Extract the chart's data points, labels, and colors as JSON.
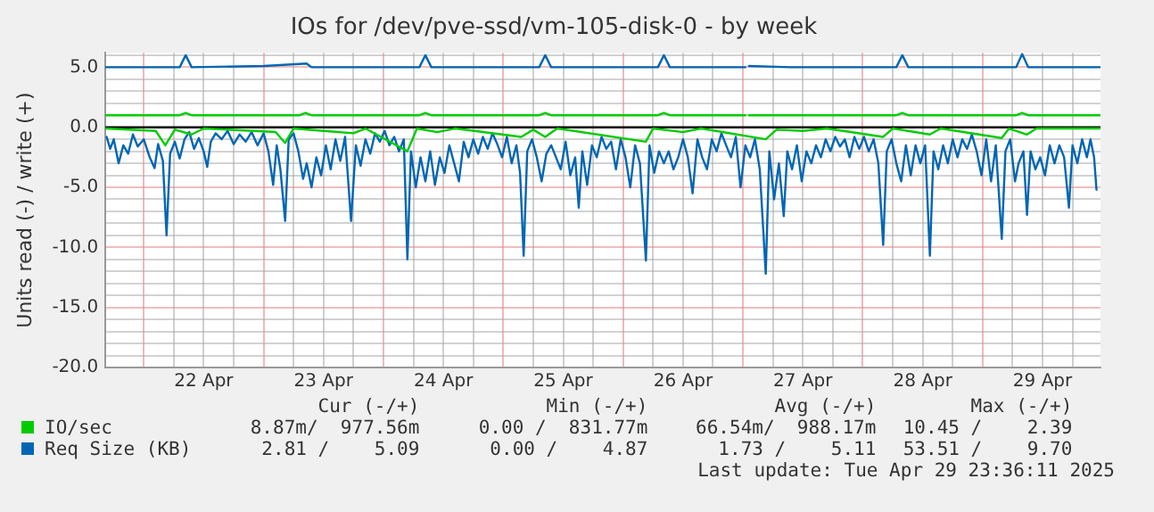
{
  "chart_data": {
    "type": "line",
    "title": "IOs for /dev/pve-ssd/vm-105-disk-0 - by week",
    "ylabel": "Units read (-) / write (+)",
    "xlim": [
      "2025-04-21T16:19",
      "2025-04-29T23:36"
    ],
    "xticks": [
      {
        "value": "2025-04-22T00:00",
        "label": null
      },
      {
        "value": "2025-04-22T06:00",
        "label": null
      },
      {
        "value": "2025-04-22T12:00",
        "label": "22 Apr"
      },
      {
        "value": "2025-04-22T18:00",
        "label": null
      },
      {
        "value": "2025-04-23T00:00",
        "label": null
      },
      {
        "value": "2025-04-23T06:00",
        "label": null
      },
      {
        "value": "2025-04-23T12:00",
        "label": "23 Apr"
      },
      {
        "value": "2025-04-23T18:00",
        "label": null
      },
      {
        "value": "2025-04-24T00:00",
        "label": null
      },
      {
        "value": "2025-04-24T06:00",
        "label": null
      },
      {
        "value": "2025-04-24T12:00",
        "label": "24 Apr"
      },
      {
        "value": "2025-04-24T18:00",
        "label": null
      },
      {
        "value": "2025-04-25T00:00",
        "label": null
      },
      {
        "value": "2025-04-25T06:00",
        "label": null
      },
      {
        "value": "2025-04-25T12:00",
        "label": "25 Apr"
      },
      {
        "value": "2025-04-25T18:00",
        "label": null
      },
      {
        "value": "2025-04-26T00:00",
        "label": null
      },
      {
        "value": "2025-04-26T06:00",
        "label": null
      },
      {
        "value": "2025-04-26T12:00",
        "label": "26 Apr"
      },
      {
        "value": "2025-04-26T18:00",
        "label": null
      },
      {
        "value": "2025-04-27T00:00",
        "label": null
      },
      {
        "value": "2025-04-27T06:00",
        "label": null
      },
      {
        "value": "2025-04-27T12:00",
        "label": "27 Apr"
      },
      {
        "value": "2025-04-27T18:00",
        "label": null
      },
      {
        "value": "2025-04-28T00:00",
        "label": null
      },
      {
        "value": "2025-04-28T06:00",
        "label": null
      },
      {
        "value": "2025-04-28T12:00",
        "label": "28 Apr"
      },
      {
        "value": "2025-04-28T18:00",
        "label": null
      },
      {
        "value": "2025-04-29T00:00",
        "label": null
      },
      {
        "value": "2025-04-29T06:00",
        "label": null
      },
      {
        "value": "2025-04-29T12:00",
        "label": "29 Apr"
      },
      {
        "value": "2025-04-29T18:00",
        "label": null
      }
    ],
    "ylim": [
      -20,
      6.2
    ],
    "yticks": [
      {
        "value": -20,
        "label": "-20.0"
      },
      {
        "value": -19,
        "label": null
      },
      {
        "value": -18,
        "label": null
      },
      {
        "value": -17,
        "label": null
      },
      {
        "value": -16,
        "label": null
      },
      {
        "value": -15,
        "label": "-15.0"
      },
      {
        "value": -14,
        "label": null
      },
      {
        "value": -13,
        "label": null
      },
      {
        "value": -12,
        "label": null
      },
      {
        "value": -11,
        "label": null
      },
      {
        "value": -10,
        "label": "-10.0"
      },
      {
        "value": -9,
        "label": null
      },
      {
        "value": -8,
        "label": null
      },
      {
        "value": -7,
        "label": null
      },
      {
        "value": -6,
        "label": null
      },
      {
        "value": -5,
        "label": "-5.0"
      },
      {
        "value": -4,
        "label": null
      },
      {
        "value": -3,
        "label": null
      },
      {
        "value": -2,
        "label": null
      },
      {
        "value": -1,
        "label": null
      },
      {
        "value": 0,
        "label": "0.0"
      },
      {
        "value": 1,
        "label": null
      },
      {
        "value": 2,
        "label": null
      },
      {
        "value": 3,
        "label": null
      },
      {
        "value": 4,
        "label": null
      },
      {
        "value": 5,
        "label": "5.0"
      },
      {
        "value": 6,
        "label": null
      }
    ],
    "grid": true,
    "legend": "bottom",
    "marker": "none",
    "line_style": "solid",
    "ref_lines": [
      {
        "axis": "y",
        "value": 0,
        "color": "#000000"
      }
    ],
    "series": [
      {
        "name": "IO/sec",
        "color": "#00cc00",
        "x": [
          "2025-04-21T16:19",
          "2025-04-22T07:12",
          "2025-04-22T08:24",
          "2025-04-22T09:36",
          "2025-04-23T07:12",
          "2025-04-23T08:24",
          "2025-04-23T09:36",
          "2025-04-24T07:12",
          "2025-04-24T08:24",
          "2025-04-24T09:36",
          "2025-04-25T07:12",
          "2025-04-25T08:24",
          "2025-04-25T09:36",
          "2025-04-26T06:58",
          "2025-04-26T08:10",
          "2025-04-26T09:22",
          "2025-04-27T00:29",
          "2025-04-27T00:43",
          "2025-04-27T01:12",
          "2025-04-28T06:43",
          "2025-04-28T07:55",
          "2025-04-28T09:07",
          "2025-04-29T06:43",
          "2025-04-29T07:55",
          "2025-04-29T09:07",
          "2025-04-29T23:31"
        ],
        "values": [
          1.0,
          1.0,
          1.2,
          1.0,
          1.0,
          1.2,
          1.0,
          1.0,
          1.2,
          1.0,
          1.0,
          1.2,
          1.0,
          1.0,
          1.2,
          1.0,
          1.0,
          null,
          1.0,
          1.0,
          1.2,
          1.0,
          1.0,
          1.2,
          1.0,
          1.0
        ]
      },
      {
        "color": "#00cc00",
        "x": [
          "2025-04-21T16:19",
          "2025-04-22T02:24",
          "2025-04-22T04:19",
          "2025-04-22T06:14",
          "2025-04-22T09:36",
          "2025-04-22T12:00",
          "2025-04-23T02:24",
          "2025-04-23T04:19",
          "2025-04-23T06:00",
          "2025-04-23T12:00",
          "2025-04-23T18:00",
          "2025-04-23T20:24",
          "2025-04-24T04:48",
          "2025-04-24T06:43",
          "2025-04-24T10:48",
          "2025-04-24T14:24",
          "2025-04-25T03:36",
          "2025-04-25T06:00",
          "2025-04-25T08:24",
          "2025-04-25T10:48",
          "2025-04-26T04:34",
          "2025-04-26T06:00",
          "2025-04-26T12:00",
          "2025-04-26T15:36",
          "2025-04-27T04:34",
          "2025-04-27T06:43",
          "2025-04-27T12:00",
          "2025-04-27T16:48",
          "2025-04-28T04:05",
          "2025-04-28T06:00",
          "2025-04-28T13:26",
          "2025-04-28T15:36",
          "2025-04-29T03:50",
          "2025-04-29T05:17",
          "2025-04-29T08:53",
          "2025-04-29T10:48",
          "2025-04-29T23:31"
        ],
        "values": [
          -0.1,
          -0.3,
          -1.5,
          -0.2,
          -0.6,
          -0.1,
          -0.4,
          -1.3,
          -0.1,
          -0.3,
          -0.5,
          -0.1,
          -2.0,
          -0.1,
          -0.4,
          -0.1,
          -0.8,
          -0.2,
          -0.8,
          -0.1,
          -1.2,
          -0.1,
          -0.4,
          -0.1,
          -1.0,
          -0.2,
          -0.3,
          -0.1,
          -0.8,
          -0.1,
          -0.6,
          -0.1,
          -0.9,
          -0.1,
          -0.6,
          -0.1,
          -0.1
        ]
      },
      {
        "name": "Req Size (KB)",
        "color": "#0066b3",
        "x": [
          "2025-04-21T16:19",
          "2025-04-22T07:12",
          "2025-04-22T08:24",
          "2025-04-22T09:36",
          "2025-04-23T00:00",
          "2025-04-23T08:38",
          "2025-04-23T09:36",
          "2025-04-24T07:12",
          "2025-04-24T08:24",
          "2025-04-24T09:36",
          "2025-04-25T07:12",
          "2025-04-25T08:24",
          "2025-04-25T09:36",
          "2025-04-26T06:58",
          "2025-04-26T08:10",
          "2025-04-26T09:22",
          "2025-04-27T00:29",
          "2025-04-27T00:43",
          "2025-04-27T01:12",
          "2025-04-27T09:36",
          "2025-04-28T06:43",
          "2025-04-28T07:55",
          "2025-04-28T09:07",
          "2025-04-29T06:43",
          "2025-04-29T07:55",
          "2025-04-29T09:07",
          "2025-04-29T23:31"
        ],
        "values": [
          5.0,
          5.0,
          6.0,
          5.0,
          5.1,
          5.3,
          5.0,
          5.0,
          6.0,
          5.0,
          5.0,
          6.0,
          5.0,
          5.0,
          6.0,
          5.0,
          5.0,
          null,
          5.1,
          5.0,
          5.0,
          6.0,
          5.0,
          5.0,
          6.1,
          5.0,
          5.0
        ]
      },
      {
        "color": "#0066b3",
        "x": [
          "2025-04-21T16:34",
          "2025-04-21T17:17",
          "2025-04-21T18:00",
          "2025-04-21T18:58",
          "2025-04-21T19:55",
          "2025-04-21T20:53",
          "2025-04-21T21:50",
          "2025-04-21T22:48",
          "2025-04-22T00:00",
          "2025-04-22T01:12",
          "2025-04-22T02:10",
          "2025-04-22T02:53",
          "2025-04-22T03:50",
          "2025-04-22T04:34",
          "2025-04-22T05:17",
          "2025-04-22T06:14",
          "2025-04-22T07:12",
          "2025-04-22T08:10",
          "2025-04-22T09:07",
          "2025-04-22T10:05",
          "2025-04-22T11:02",
          "2025-04-22T12:00",
          "2025-04-22T12:43",
          "2025-04-22T13:26",
          "2025-04-22T14:24",
          "2025-04-22T15:36",
          "2025-04-22T16:48",
          "2025-04-22T18:00",
          "2025-04-22T19:12",
          "2025-04-22T20:24",
          "2025-04-22T21:36",
          "2025-04-22T22:48",
          "2025-04-23T00:00",
          "2025-04-23T00:58",
          "2025-04-23T01:55",
          "2025-04-23T02:38",
          "2025-04-23T03:22",
          "2025-04-23T04:19",
          "2025-04-23T05:02",
          "2025-04-23T06:00",
          "2025-04-23T06:58",
          "2025-04-23T07:55",
          "2025-04-23T08:38",
          "2025-04-23T09:36",
          "2025-04-23T10:34",
          "2025-04-23T11:31",
          "2025-04-23T12:29",
          "2025-04-23T13:26",
          "2025-04-23T14:24",
          "2025-04-23T15:22",
          "2025-04-23T16:19",
          "2025-04-23T17:31",
          "2025-04-23T18:29",
          "2025-04-23T19:26",
          "2025-04-23T20:24",
          "2025-04-23T21:22",
          "2025-04-23T22:19",
          "2025-04-23T23:17",
          "2025-04-24T00:14",
          "2025-04-24T01:12",
          "2025-04-24T02:10",
          "2025-04-24T03:07",
          "2025-04-24T04:05",
          "2025-04-24T04:48",
          "2025-04-24T05:31",
          "2025-04-24T06:29",
          "2025-04-24T07:26",
          "2025-04-24T08:24",
          "2025-04-24T09:22",
          "2025-04-24T10:19",
          "2025-04-24T11:17",
          "2025-04-24T12:14",
          "2025-04-24T13:12",
          "2025-04-24T14:10",
          "2025-04-24T15:07",
          "2025-04-24T16:05",
          "2025-04-24T17:02",
          "2025-04-24T18:00",
          "2025-04-24T18:58",
          "2025-04-24T19:55",
          "2025-04-24T20:53",
          "2025-04-24T21:50",
          "2025-04-24T22:48",
          "2025-04-24T23:46",
          "2025-04-25T00:43",
          "2025-04-25T01:41",
          "2025-04-25T02:38",
          "2025-04-25T03:22",
          "2025-04-25T04:05",
          "2025-04-25T04:48",
          "2025-04-25T05:46",
          "2025-04-25T06:43",
          "2025-04-25T07:41",
          "2025-04-25T08:38",
          "2025-04-25T09:36",
          "2025-04-25T10:34",
          "2025-04-25T11:31",
          "2025-04-25T12:29",
          "2025-04-25T13:26",
          "2025-04-25T14:24",
          "2025-04-25T15:07",
          "2025-04-25T15:50",
          "2025-04-25T16:48",
          "2025-04-25T17:46",
          "2025-04-25T18:43",
          "2025-04-25T19:41",
          "2025-04-25T20:38",
          "2025-04-25T21:36",
          "2025-04-25T22:34",
          "2025-04-25T23:31",
          "2025-04-26T00:29",
          "2025-04-26T01:26",
          "2025-04-26T02:24",
          "2025-04-26T03:22",
          "2025-04-26T04:34",
          "2025-04-26T05:17",
          "2025-04-26T06:14",
          "2025-04-26T07:12",
          "2025-04-26T08:10",
          "2025-04-26T09:07",
          "2025-04-26T10:05",
          "2025-04-26T11:02",
          "2025-04-26T12:00",
          "2025-04-26T12:58",
          "2025-04-26T13:55",
          "2025-04-26T14:53",
          "2025-04-26T15:50",
          "2025-04-26T16:48",
          "2025-04-26T17:46",
          "2025-04-26T18:43",
          "2025-04-26T19:41",
          "2025-04-26T20:38",
          "2025-04-26T21:36",
          "2025-04-26T22:34",
          "2025-04-26T23:31",
          "2025-04-27T00:29",
          "2025-04-27T01:26",
          "2025-04-27T02:24",
          "2025-04-27T03:22",
          "2025-04-27T04:34",
          "2025-04-27T05:17",
          "2025-04-27T06:14",
          "2025-04-27T07:12",
          "2025-04-27T08:10",
          "2025-04-27T08:53",
          "2025-04-27T09:50",
          "2025-04-27T10:48",
          "2025-04-27T11:46",
          "2025-04-27T12:43",
          "2025-04-27T13:41",
          "2025-04-27T14:38",
          "2025-04-27T15:36",
          "2025-04-27T16:34",
          "2025-04-27T17:31",
          "2025-04-27T18:29",
          "2025-04-27T19:26",
          "2025-04-27T20:24",
          "2025-04-27T21:22",
          "2025-04-27T22:19",
          "2025-04-27T23:17",
          "2025-04-28T00:14",
          "2025-04-28T01:12",
          "2025-04-28T02:10",
          "2025-04-28T03:07",
          "2025-04-28T04:05",
          "2025-04-28T04:48",
          "2025-04-28T05:46",
          "2025-04-28T06:43",
          "2025-04-28T07:41",
          "2025-04-28T08:38",
          "2025-04-28T09:36",
          "2025-04-28T10:34",
          "2025-04-28T11:31",
          "2025-04-28T12:29",
          "2025-04-28T13:26",
          "2025-04-28T14:10",
          "2025-04-28T15:07",
          "2025-04-28T16:05",
          "2025-04-28T17:02",
          "2025-04-28T18:00",
          "2025-04-28T18:58",
          "2025-04-28T19:55",
          "2025-04-28T20:53",
          "2025-04-28T21:50",
          "2025-04-28T22:48",
          "2025-04-28T23:46",
          "2025-04-29T00:43",
          "2025-04-29T01:41",
          "2025-04-29T02:38",
          "2025-04-29T03:50",
          "2025-04-29T04:34",
          "2025-04-29T05:31",
          "2025-04-29T06:29",
          "2025-04-29T07:12",
          "2025-04-29T08:10",
          "2025-04-29T08:53",
          "2025-04-29T09:36",
          "2025-04-29T10:34",
          "2025-04-29T11:31",
          "2025-04-29T12:29",
          "2025-04-29T13:26",
          "2025-04-29T14:24",
          "2025-04-29T15:22",
          "2025-04-29T16:19",
          "2025-04-29T17:17",
          "2025-04-29T18:00",
          "2025-04-29T18:58",
          "2025-04-29T19:55",
          "2025-04-29T20:53",
          "2025-04-29T21:36",
          "2025-04-29T22:19",
          "2025-04-29T22:48"
        ],
        "values": [
          -0.8,
          -1.8,
          -1.0,
          -3.0,
          -1.5,
          -2.2,
          -0.6,
          -1.6,
          -1.0,
          -2.5,
          -3.4,
          -1.4,
          -2.8,
          -9.0,
          -2.2,
          -1.2,
          -2.6,
          -1.0,
          -0.4,
          -1.8,
          -0.9,
          -2.0,
          -3.3,
          -1.2,
          -0.5,
          -1.0,
          -0.3,
          -1.4,
          -0.6,
          -1.2,
          -0.4,
          -1.5,
          -0.5,
          -2.0,
          -4.8,
          -1.5,
          -3.5,
          -7.8,
          -1.0,
          -0.5,
          -2.0,
          -4.3,
          -3.0,
          -5.0,
          -2.5,
          -4.0,
          -1.5,
          -3.5,
          -1.0,
          -2.8,
          -0.8,
          -7.8,
          -1.5,
          -3.2,
          -1.0,
          -2.2,
          -0.5,
          -1.2,
          -0.3,
          -1.5,
          -0.8,
          -2.0,
          -1.0,
          -11.0,
          -2.0,
          -5.0,
          -2.5,
          -4.5,
          -2.0,
          -4.8,
          -2.5,
          -3.8,
          -1.5,
          -3.0,
          -4.5,
          -1.2,
          -2.5,
          -1.0,
          -2.2,
          -0.8,
          -1.8,
          -0.5,
          -1.4,
          -2.5,
          -0.8,
          -3.0,
          -1.5,
          -3.8,
          -10.7,
          -2.0,
          -1.0,
          -2.5,
          -4.5,
          -2.2,
          -1.5,
          -2.5,
          -3.5,
          -1.2,
          -4.0,
          -2.5,
          -6.7,
          -2.0,
          -4.8,
          -1.5,
          -2.5,
          -0.8,
          -1.8,
          -1.2,
          -3.5,
          -1.0,
          -2.5,
          -5.0,
          -1.5,
          -3.0,
          -11.1,
          -1.5,
          -3.8,
          -2.0,
          -3.0,
          -2.0,
          -3.5,
          -2.5,
          -1.0,
          -2.5,
          -5.5,
          -1.0,
          -2.5,
          -3.5,
          -1.0,
          -2.0,
          -0.5,
          -1.5,
          -2.5,
          -0.8,
          -5.0,
          -1.5,
          -2.5,
          -1.0,
          -3.5,
          -12.2,
          -2.0,
          -6.0,
          -3.0,
          -7.4,
          -2.0,
          -3.5,
          -1.5,
          -4.5,
          -2.0,
          -3.0,
          -1.5,
          -2.5,
          -1.0,
          -2.0,
          -0.8,
          -1.6,
          -1.0,
          -2.5,
          -0.8,
          -1.8,
          -0.8,
          -2.0,
          -1.0,
          -3.0,
          -9.8,
          -2.0,
          -1.0,
          -3.0,
          -4.5,
          -1.5,
          -4.0,
          -1.5,
          -3.0,
          -1.5,
          -10.7,
          -2.0,
          -3.5,
          -1.5,
          -3.0,
          -1.0,
          -2.5,
          -1.0,
          -1.8,
          -0.6,
          -2.0,
          -4.0,
          -1.0,
          -4.5,
          -1.5,
          -9.3,
          -2.0,
          -1.0,
          -4.5,
          -3.0,
          -2.0,
          -7.3,
          -2.0,
          -3.5,
          -2.5,
          -4.0,
          -1.5,
          -3.0,
          -1.5,
          -2.5,
          -6.7,
          -1.5,
          -3.0,
          -1.0,
          -2.5,
          -1.0,
          -2.5,
          -5.2
        ]
      }
    ],
    "annotations": [
      "Cur (-/+)",
      "Min (-/+)",
      "Avg (-/+)",
      "Max (-/+)",
      "8.87m/  977.56m",
      "0.00 /  831.77m",
      "66.54m/  988.17m",
      "10.45 /    2.39",
      "2.81 /    5.09",
      "0.00 /    4.87",
      "1.73 /    5.11",
      "53.51 /    9.70",
      "Last update: Tue Apr 29 23:36:11 2025"
    ]
  }
}
